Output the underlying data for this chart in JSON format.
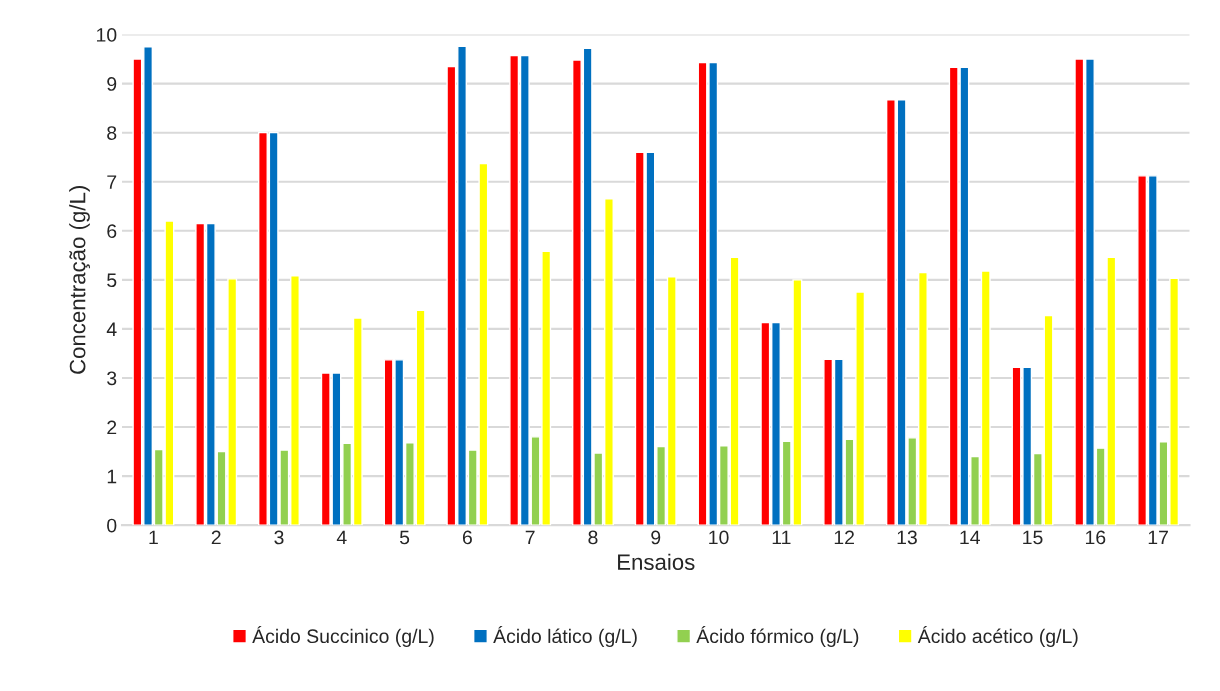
{
  "chart_data": {
    "type": "bar",
    "xlabel": "Ensaios",
    "ylabel": "Concentração (g/L)",
    "categories": [
      "1",
      "2",
      "3",
      "4",
      "5",
      "6",
      "7",
      "8",
      "9",
      "10",
      "11",
      "12",
      "13",
      "14",
      "15",
      "16",
      "17"
    ],
    "series": [
      {
        "name": "Ácido Succinico (g/L)",
        "color": "#ff0000",
        "values": [
          9.5,
          6.15,
          8.0,
          3.1,
          3.37,
          9.35,
          9.57,
          9.48,
          7.6,
          9.43,
          4.13,
          3.38,
          8.67,
          9.33,
          3.22,
          9.5,
          7.12
        ]
      },
      {
        "name": "Ácido lático (g/L)",
        "color": "#0070c0",
        "values": [
          9.75,
          6.15,
          8.0,
          3.1,
          3.37,
          9.76,
          9.57,
          9.72,
          7.6,
          9.43,
          4.13,
          3.38,
          8.67,
          9.33,
          3.22,
          9.5,
          7.12
        ]
      },
      {
        "name": "Ácido fórmico (g/L)",
        "color": "#92d050",
        "values": [
          1.54,
          1.5,
          1.53,
          1.67,
          1.68,
          1.53,
          1.8,
          1.47,
          1.6,
          1.62,
          1.71,
          1.75,
          1.78,
          1.4,
          1.46,
          1.57,
          1.7
        ]
      },
      {
        "name": "Ácido acético (g/L)",
        "color": "#ffff00",
        "values": [
          6.2,
          5.02,
          5.08,
          4.22,
          4.38,
          7.37,
          5.58,
          6.65,
          5.06,
          5.46,
          5.0,
          4.75,
          5.15,
          5.18,
          4.27,
          5.46,
          5.03
        ]
      }
    ],
    "ylim": [
      0,
      10
    ],
    "yticks": [
      0,
      1,
      2,
      3,
      4,
      5,
      6,
      7,
      8,
      9,
      10
    ],
    "grid": "y",
    "legend": "bottom"
  }
}
